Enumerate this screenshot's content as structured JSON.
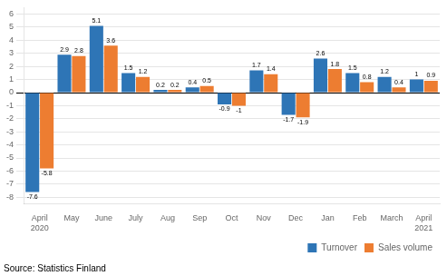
{
  "chart_data": {
    "type": "bar",
    "categories": [
      "April\n2020",
      "May",
      "June",
      "July",
      "Aug",
      "Sep",
      "Oct",
      "Nov",
      "Dec",
      "Jan",
      "Feb",
      "March",
      "April\n2021"
    ],
    "series": [
      {
        "name": "Turnover",
        "color": "#2E75B6",
        "values": [
          -7.6,
          2.9,
          5.1,
          1.5,
          0.2,
          0.4,
          -0.9,
          1.7,
          -1.7,
          2.6,
          1.5,
          1.2,
          1.0
        ]
      },
      {
        "name": "Sales volume",
        "color": "#ED7D31",
        "values": [
          -5.8,
          2.8,
          3.6,
          1.2,
          0.2,
          0.5,
          -1.0,
          1.4,
          -1.9,
          1.8,
          0.8,
          0.4,
          0.9
        ]
      }
    ],
    "ylim": [
      -8.5,
      6.5
    ],
    "yticks": [
      -8,
      -7,
      -6,
      -5,
      -4,
      -3,
      -2,
      -1,
      0,
      1,
      2,
      3,
      4,
      5,
      6
    ],
    "grid": true,
    "legend": "lower right",
    "data_labels": true,
    "annotations": [
      "Source: Statistics Finland"
    ]
  }
}
